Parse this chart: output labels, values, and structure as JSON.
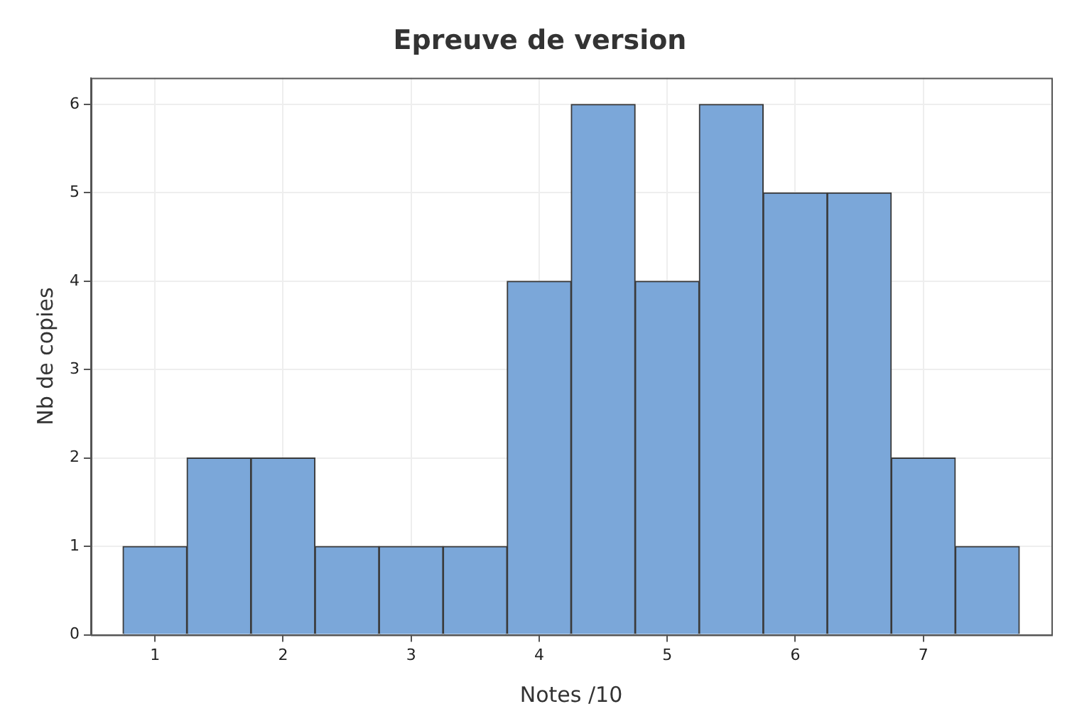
{
  "chart_data": {
    "type": "histogram",
    "title": "Epreuve de version",
    "xlabel": "Notes /10",
    "ylabel": "Nb de copies",
    "bins": [
      0.75,
      1.25,
      1.75,
      2.25,
      2.75,
      3.25,
      3.75,
      4.25,
      4.75,
      5.25,
      5.75,
      6.25,
      6.75,
      7.25,
      7.75
    ],
    "values": [
      1,
      2,
      2,
      1,
      1,
      1,
      4,
      6,
      4,
      6,
      5,
      5,
      2,
      1
    ],
    "color": "#7ba7d9",
    "xlim": [
      0.5,
      8
    ],
    "xticks": [
      1,
      2,
      3,
      4,
      5,
      6,
      7
    ],
    "ylim": [
      0,
      6.3
    ],
    "yticks": [
      0,
      1,
      2,
      3,
      4,
      5,
      6
    ],
    "grid": true,
    "legend": false
  }
}
